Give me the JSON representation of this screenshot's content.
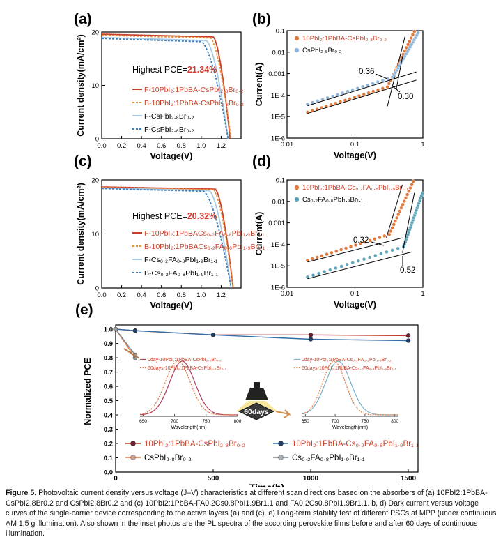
{
  "panel_labels": [
    "(a)",
    "(b)",
    "(c)",
    "(d)",
    "(e)"
  ],
  "caption": {
    "label": "Figure 5.",
    "text": "Photovoltaic current density versus voltage (J–V) characteristics at different scan directions based on the absorbers of (a) 10PbI2:1PbBA-CsPbI2.8Br0.2 and CsPbI2.8Br0.2 and (c) 10PbI2:1PbBA-FA0.2Cs0.8PbI1.9Br1.1 and FA0.2Cs0.8PbI1.9Br1.1. b, d) Dark current versus voltage curves of the single-carrier device corresponding to the active layers (a) and (c). e) Long-term stability test of different PSCs at MPP (under continuous AM 1.5 g illumination). Also shown in the inset photos are the PL spectra of the according perovskite films before and after 60 days of continuous illumination."
  },
  "colors": {
    "red": "#c8402a",
    "orange": "#e0783c",
    "lightblue": "#a9c9e4",
    "blue": "#3f7fb8",
    "teal": "#4a9ab0"
  },
  "chart_data": [
    {
      "id": "a",
      "type": "line",
      "xlabel": "Voltage(V)",
      "ylabel": "Current density(mA/cm²)",
      "xlim": [
        0,
        1.4
      ],
      "ylim": [
        0,
        20
      ],
      "xticks": [
        "0.0",
        "0.2",
        "0.4",
        "0.6",
        "0.8",
        "1.0",
        "1.2"
      ],
      "yticks": [
        "0",
        "10",
        "20"
      ],
      "annotation": {
        "prefix": "Highest PCE=",
        "value": "21.34%"
      },
      "series": [
        {
          "name": "F-10PbI₂:1PbBA-CsPbI₂.₈Br₀.₂",
          "color": "#c8402a",
          "dash": false,
          "jsc": 19.6,
          "voc": 1.29,
          "knee": 1.12,
          "sag": 0.5
        },
        {
          "name": "B-10PbI₂:1PbBA-CsPbI₂.₈Br₀.₂",
          "color": "#e8923c",
          "dash": true,
          "jsc": 19.4,
          "voc": 1.3,
          "knee": 1.09,
          "sag": 0.5
        },
        {
          "name": "F-CsPbI₂.₈Br₀.₂",
          "color": "#a9c9e4",
          "dash": false,
          "jsc": 19.0,
          "voc": 1.27,
          "knee": 1.05,
          "sag": 0.6
        },
        {
          "name": "F-CsPbI₂.₈Br₀.₂",
          "color": "#3f7fb8",
          "dash": true,
          "jsc": 18.8,
          "voc": 1.27,
          "knee": 1.0,
          "sag": 0.6
        }
      ]
    },
    {
      "id": "b",
      "type": "scatter",
      "yscale": "log",
      "xscale": "log",
      "xlabel": "Voltage(V)",
      "ylabel": "Current(A)",
      "xlim": [
        0.01,
        1
      ],
      "ylim": [
        1e-06,
        0.1
      ],
      "xticks": [
        "0.01",
        "0.1",
        "1"
      ],
      "yticks": [
        "1E-6",
        "1E-5",
        "1E-4",
        "0.001",
        "0.01",
        "0.1"
      ],
      "annotations": [
        "0.36",
        "0.30"
      ],
      "series": [
        {
          "name": "10PbI₂:1PbBA-CsPbI₂.₈Br₀.₂",
          "color": "#e0783c",
          "offset": 1.6e-05,
          "vtfl": 0.3
        },
        {
          "name": "CsPbI₂.₈Br₀.₂",
          "color": "#8fb6da",
          "offset": 3.8e-05,
          "vtfl": 0.36
        }
      ]
    },
    {
      "id": "c",
      "type": "line",
      "xlabel": "Voltage(V)",
      "ylabel": "Current density(mA/cm²)",
      "xlim": [
        0,
        1.4
      ],
      "ylim": [
        0,
        20
      ],
      "xticks": [
        "0.0",
        "0.2",
        "0.4",
        "0.6",
        "0.8",
        "1.0",
        "1.2"
      ],
      "yticks": [
        "0",
        "10",
        "20"
      ],
      "annotation": {
        "prefix": "Highest PCE=",
        "value": "20.32%"
      },
      "series": [
        {
          "name": "F-10PbI₂:1PbBACs₀.₂FA₀.₈PbI₁.₉Br₁.₁",
          "color": "#c8402a",
          "dash": false,
          "jsc": 18.7,
          "voc": 1.32,
          "knee": 1.14,
          "sag": 0.4
        },
        {
          "name": "B-10PbI₂:1PbBACs₀.₂FA₀.₈PbI₁.₉Br₁.₁",
          "color": "#e8923c",
          "dash": true,
          "jsc": 18.6,
          "voc": 1.32,
          "knee": 1.12,
          "sag": 0.4
        },
        {
          "name": "F-Cs₀.₂FA₀.₈PbI₁.₉Br₁.₁",
          "color": "#a9c9e4",
          "dash": false,
          "jsc": 18.5,
          "voc": 1.3,
          "knee": 1.08,
          "sag": 0.5
        },
        {
          "name": "B-Cs₀.₂FA₀.₈PbI₁.₉Br₁.₁",
          "color": "#3f7fb8",
          "dash": true,
          "jsc": 18.4,
          "voc": 1.3,
          "knee": 1.02,
          "sag": 0.5
        }
      ]
    },
    {
      "id": "d",
      "type": "scatter",
      "yscale": "log",
      "xscale": "log",
      "xlabel": "Voltage(V)",
      "ylabel": "Current(A)",
      "xlim": [
        0.01,
        1
      ],
      "ylim": [
        1e-06,
        0.1
      ],
      "xticks": [
        "0.01",
        "0.1",
        "1"
      ],
      "yticks": [
        "1E-6",
        "1E-5",
        "1E-4",
        "0.001",
        "0.01",
        "0.1"
      ],
      "annotations": [
        "0.32",
        "0.52"
      ],
      "series": [
        {
          "name": "10PbI₂:1PbBA-Cs₀.₂FA₀.₈PbI₁.₉Br₁.₁",
          "color": "#e0783c",
          "offset": 1.8e-05,
          "vtfl": 0.32
        },
        {
          "name": "Cs₀.₂FA₀.₈PbI₁.₉Br₁.₁",
          "color": "#5aa3b8",
          "offset": 3e-06,
          "vtfl": 0.52
        }
      ]
    },
    {
      "id": "e",
      "type": "line",
      "xlabel": "Time(h)",
      "ylabel": "Normalized PCE",
      "xlim": [
        0,
        1550
      ],
      "ylim": [
        0.0,
        1.03
      ],
      "xticks": [
        "0",
        "500",
        "1000",
        "1500"
      ],
      "yticks": [
        "0.0",
        "0.1",
        "0.2",
        "0.3",
        "0.4",
        "0.5",
        "0.6",
        "0.7",
        "0.8",
        "0.9",
        "1.0"
      ],
      "series": [
        {
          "name": "10PbI₂:1PbBA-CsPbI₂.₈Br₀.₂",
          "color": "#c0392b",
          "x": [
            0,
            100,
            500,
            1000,
            1500
          ],
          "y": [
            1.0,
            0.99,
            0.96,
            0.96,
            0.955
          ]
        },
        {
          "name": "10PbI₂:1PbBA-Cs₀.₂FA₀.₈PbI₁.₉Br₁.₁",
          "color": "#2f6ea8",
          "x": [
            0,
            100,
            500,
            1000,
            1500
          ],
          "y": [
            1.0,
            0.99,
            0.96,
            0.93,
            0.92
          ]
        },
        {
          "name": "CsPbI₂.₈Br₀.₂",
          "color": "#e0783c",
          "x": [
            0,
            100
          ],
          "y": [
            1.0,
            0.8
          ]
        },
        {
          "name": "Cs₀.₂FA₀.₈PbI₁.₉Br₁.₁",
          "color": "#7a8a96",
          "x": [
            0,
            100
          ],
          "y": [
            1.0,
            0.82
          ]
        }
      ],
      "insets": [
        {
          "xlabel": "Wavelength(nm)",
          "xlim": [
            645,
            800
          ],
          "xticks": [
            "650",
            "700",
            "750",
            "800"
          ],
          "series": [
            {
              "name": "0day-10PbI₂:1PbBA-CsPbI₂.₈Br₀.₂",
              "color": "#b03a5a",
              "dash": false,
              "peak": 712,
              "width": 20
            },
            {
              "name": "60days-10PbI₂:1PbBA-CsPbI₂.₈Br₀.₂",
              "color": "#e0783c",
              "dash": true,
              "peak": 705,
              "width": 20
            }
          ]
        },
        {
          "xlabel": "Wavelength(nm)",
          "xlim": [
            645,
            805
          ],
          "xticks": [
            "650",
            "700",
            "750",
            "800"
          ],
          "series": [
            {
              "name": "0day-10PbI₂:1PbBA-Cs₀.₂FA₀.₈PbI₁.₉Br₁.₁",
              "color": "#7ab0c8",
              "dash": false,
              "peak": 705,
              "width": 21
            },
            {
              "name": "60days-10PbI₂:1PbBA-Cs₀.₂FA₀.₈PbI₁.₉Br₁.₁",
              "color": "#e0783c",
              "dash": true,
              "peak": 698,
              "width": 19
            }
          ]
        }
      ],
      "lamp_label": "60days"
    }
  ]
}
